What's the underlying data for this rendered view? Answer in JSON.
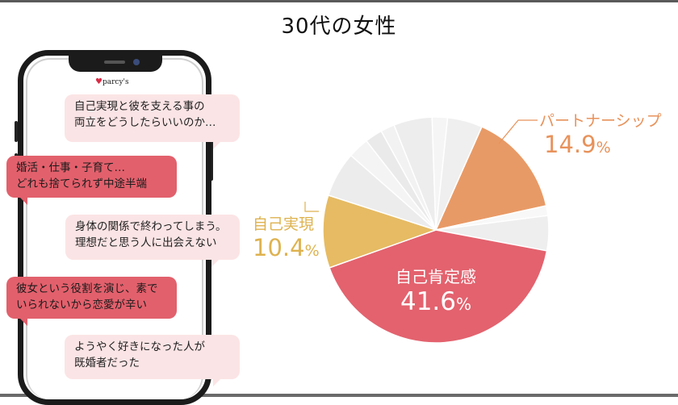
{
  "title": "30代の女性",
  "brand": {
    "logo_text": "parcy's"
  },
  "bubbles": [
    {
      "lines": [
        "自己実現と彼を支える事の",
        "両立をどうしたらいいのか…"
      ],
      "style": "light"
    },
    {
      "lines": [
        "婚活・仕事・子育て…",
        "どれも捨てられず中途半端"
      ],
      "style": "dark"
    },
    {
      "lines": [
        "身体の関係で終わってしまう。",
        "理想だと思う人に出会えない"
      ],
      "style": "light"
    },
    {
      "lines": [
        "彼女という役割を演じ、素で",
        "いられないから恋愛が辛い"
      ],
      "style": "dark"
    },
    {
      "lines": [
        "ようやく好きになった人が",
        "既婚者だった"
      ],
      "style": "light"
    }
  ],
  "chart_data": {
    "type": "pie",
    "title": "",
    "start_angle_deg": 24,
    "slices": [
      {
        "name": "パートナーシップ",
        "value": 14.9,
        "label": "14.9",
        "unit": "%",
        "color": "#e89a66",
        "labeled": true
      },
      {
        "name": "",
        "value": 1.4,
        "color": "#f8f8f8",
        "labeled": false
      },
      {
        "name": "",
        "value": 5.0,
        "color": "#eeeeee",
        "labeled": false
      },
      {
        "name": "自己肯定感",
        "value": 41.6,
        "label": "41.6",
        "unit": "%",
        "color": "#e3626e",
        "labeled": true
      },
      {
        "name": "自己実現",
        "value": 10.4,
        "label": "10.4",
        "unit": "%",
        "color": "#e6bb63",
        "labeled": true
      },
      {
        "name": "",
        "value": 6.5,
        "color": "#ececec",
        "labeled": false
      },
      {
        "name": "",
        "value": 3.0,
        "color": "#f4f4f4",
        "labeled": false
      },
      {
        "name": "",
        "value": 2.5,
        "color": "#eaeaea",
        "labeled": false
      },
      {
        "name": "",
        "value": 2.0,
        "color": "#f2f2f2",
        "labeled": false
      },
      {
        "name": "",
        "value": 5.5,
        "color": "#ededed",
        "labeled": false
      },
      {
        "name": "",
        "value": 2.2,
        "color": "#f5f5f5",
        "labeled": false
      },
      {
        "name": "",
        "value": 5.0,
        "color": "#efefef",
        "labeled": false
      }
    ]
  }
}
